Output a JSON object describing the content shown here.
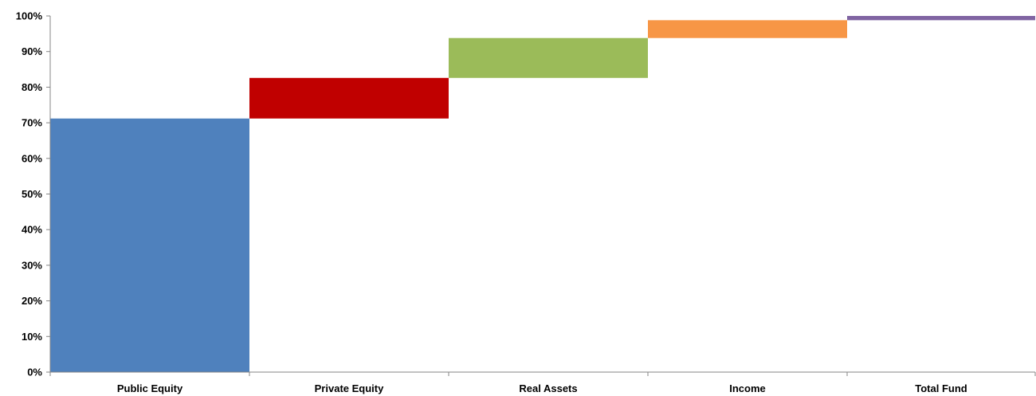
{
  "chart_data": {
    "type": "bar",
    "subtype": "waterfall",
    "title": "",
    "xlabel": "",
    "ylabel": "",
    "ylim": [
      0,
      100
    ],
    "y_tick_labels": [
      "0%",
      "10%",
      "20%",
      "30%",
      "40%",
      "50%",
      "60%",
      "70%",
      "80%",
      "90%",
      "100%"
    ],
    "grid": false,
    "legend": "none",
    "categories": [
      "Public Equity",
      "Private Equity",
      "Real Assets",
      "Income",
      "Total Fund"
    ],
    "bars": [
      {
        "category": "Public Equity",
        "start": 0,
        "end": 71.2,
        "value": 71.2,
        "color": "#4F81BD"
      },
      {
        "category": "Private Equity",
        "start": 71.2,
        "end": 82.6,
        "value": 11.4,
        "color": "#C00000"
      },
      {
        "category": "Real Assets",
        "start": 82.6,
        "end": 93.8,
        "value": 11.2,
        "color": "#9BBB59"
      },
      {
        "category": "Income",
        "start": 93.8,
        "end": 98.8,
        "value": 5.0,
        "color": "#F79646"
      },
      {
        "category": "Total Fund",
        "start": 98.8,
        "end": 100,
        "value": 1.2,
        "color": "#8064A2"
      }
    ]
  }
}
